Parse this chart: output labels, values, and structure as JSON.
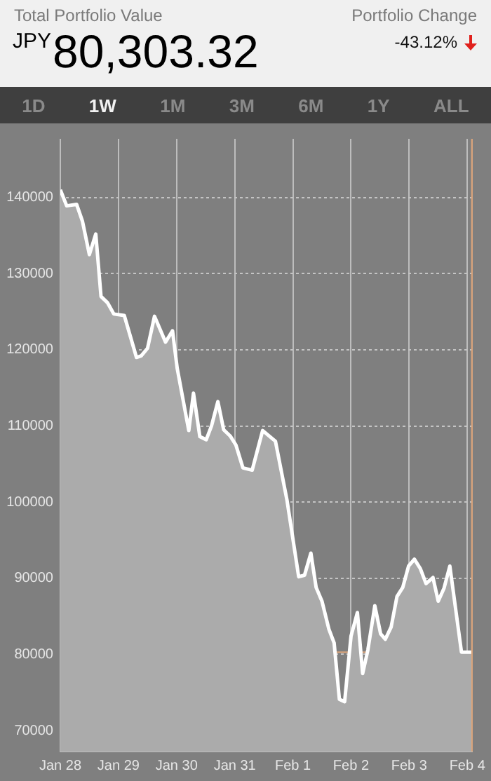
{
  "chart_data": {
    "type": "area",
    "title": "Total Portfolio Value",
    "subtitle": "$^{JPY}$80,303.32",
    "annotations": [
      "Portfolio Change",
      "-43.12%",
      "1D",
      "1W",
      "1M",
      "3M",
      "6M",
      "1Y",
      "ALL"
    ],
    "series": [
      {
        "color": "#ffffff",
        "x": [
          "--01-28T00:00",
          "--01-28T02:38",
          "--01-28T06:43",
          "--01-28T09:07",
          "--01-28T12:00",
          "--01-28T14:38",
          "--01-28T16:48",
          "--01-28T19:26",
          "--01-28T22:05",
          "--01-29T02:24",
          "--01-29T07:26",
          "--01-29T09:22",
          "--01-29T12:00",
          "--01-29T14:53",
          "--01-29T19:26",
          "--01-29T22:19",
          "--01-30T00:14",
          "--01-30T05:02",
          "--01-30T06:58",
          "--01-30T09:36",
          "--01-30T12:14",
          "--01-30T14:24",
          "--01-30T17:02",
          "--01-30T19:26",
          "--01-30T22:05",
          "--01-31T00:29",
          "--01-31T03:22",
          "--01-31T07:12",
          "--01-31T11:31",
          "--01-31T16:48",
          "--01-31T21:36",
          "--02-01T02:24",
          "--02-01T04:48",
          "--02-01T07:26",
          "--02-01T09:36",
          "--02-01T12:00",
          "--02-01T14:53",
          "--02-01T17:02",
          "--02-01T19:12",
          "--02-01T21:22",
          "--02-02T00:00",
          "--02-02T02:38",
          "--02-02T04:48",
          "--02-02T06:58",
          "--02-02T09:50",
          "--02-02T12:14",
          "--02-02T14:10",
          "--02-02T16:34",
          "--02-02T18:58",
          "--02-02T21:22",
          "--02-02T23:46",
          "--02-03T02:10",
          "--02-03T04:34",
          "--02-03T06:58",
          "--02-03T09:50",
          "--02-03T12:00",
          "--02-03T14:24",
          "--02-03T16:48",
          "--02-03T21:36",
          "--02-04T01:55"
        ],
        "values": [
          141000,
          138900,
          139100,
          136900,
          132500,
          135200,
          127000,
          126200,
          124700,
          124500,
          119000,
          119200,
          120200,
          124400,
          121000,
          122500,
          117600,
          109400,
          114300,
          108600,
          108200,
          110000,
          113200,
          109500,
          108700,
          107500,
          104500,
          104200,
          109400,
          108000,
          100200,
          90200,
          90400,
          93300,
          88800,
          87000,
          83300,
          81500,
          74100,
          73800,
          82400,
          85500,
          77500,
          80600,
          86400,
          82700,
          82000,
          83600,
          87600,
          88800,
          91600,
          92500,
          91300,
          89300,
          90100,
          87000,
          88700,
          91600,
          80300,
          80300
        ]
      }
    ],
    "xlim": [
      "--01-28T00:00",
      "--02-04T01:55"
    ],
    "xticks": [
      {
        "value": "--01-28",
        "label": "Jan 28"
      },
      {
        "value": "--01-29",
        "label": "Jan 29"
      },
      {
        "value": "--01-30",
        "label": "Jan 30"
      },
      {
        "value": "--01-31",
        "label": "Jan 31"
      },
      {
        "value": "--02-01",
        "label": "Feb 1"
      },
      {
        "value": "--02-02",
        "label": "Feb 2"
      },
      {
        "value": "--02-03",
        "label": "Feb 3"
      },
      {
        "value": "--02-04",
        "label": "Feb 4"
      }
    ],
    "ylim": [
      67250,
      147700
    ],
    "yticks": [
      70000,
      80000,
      90000,
      100000,
      110000,
      120000,
      130000,
      140000
    ],
    "ref_lines": [
      {
        "axis": "y",
        "value": 80300,
        "color": "#d9a47c"
      },
      {
        "axis": "x",
        "value": "--02-04T01:55",
        "color": "#d9a47c"
      }
    ],
    "grid": true,
    "legend": false,
    "marker": "none",
    "line_style": "solid"
  }
}
